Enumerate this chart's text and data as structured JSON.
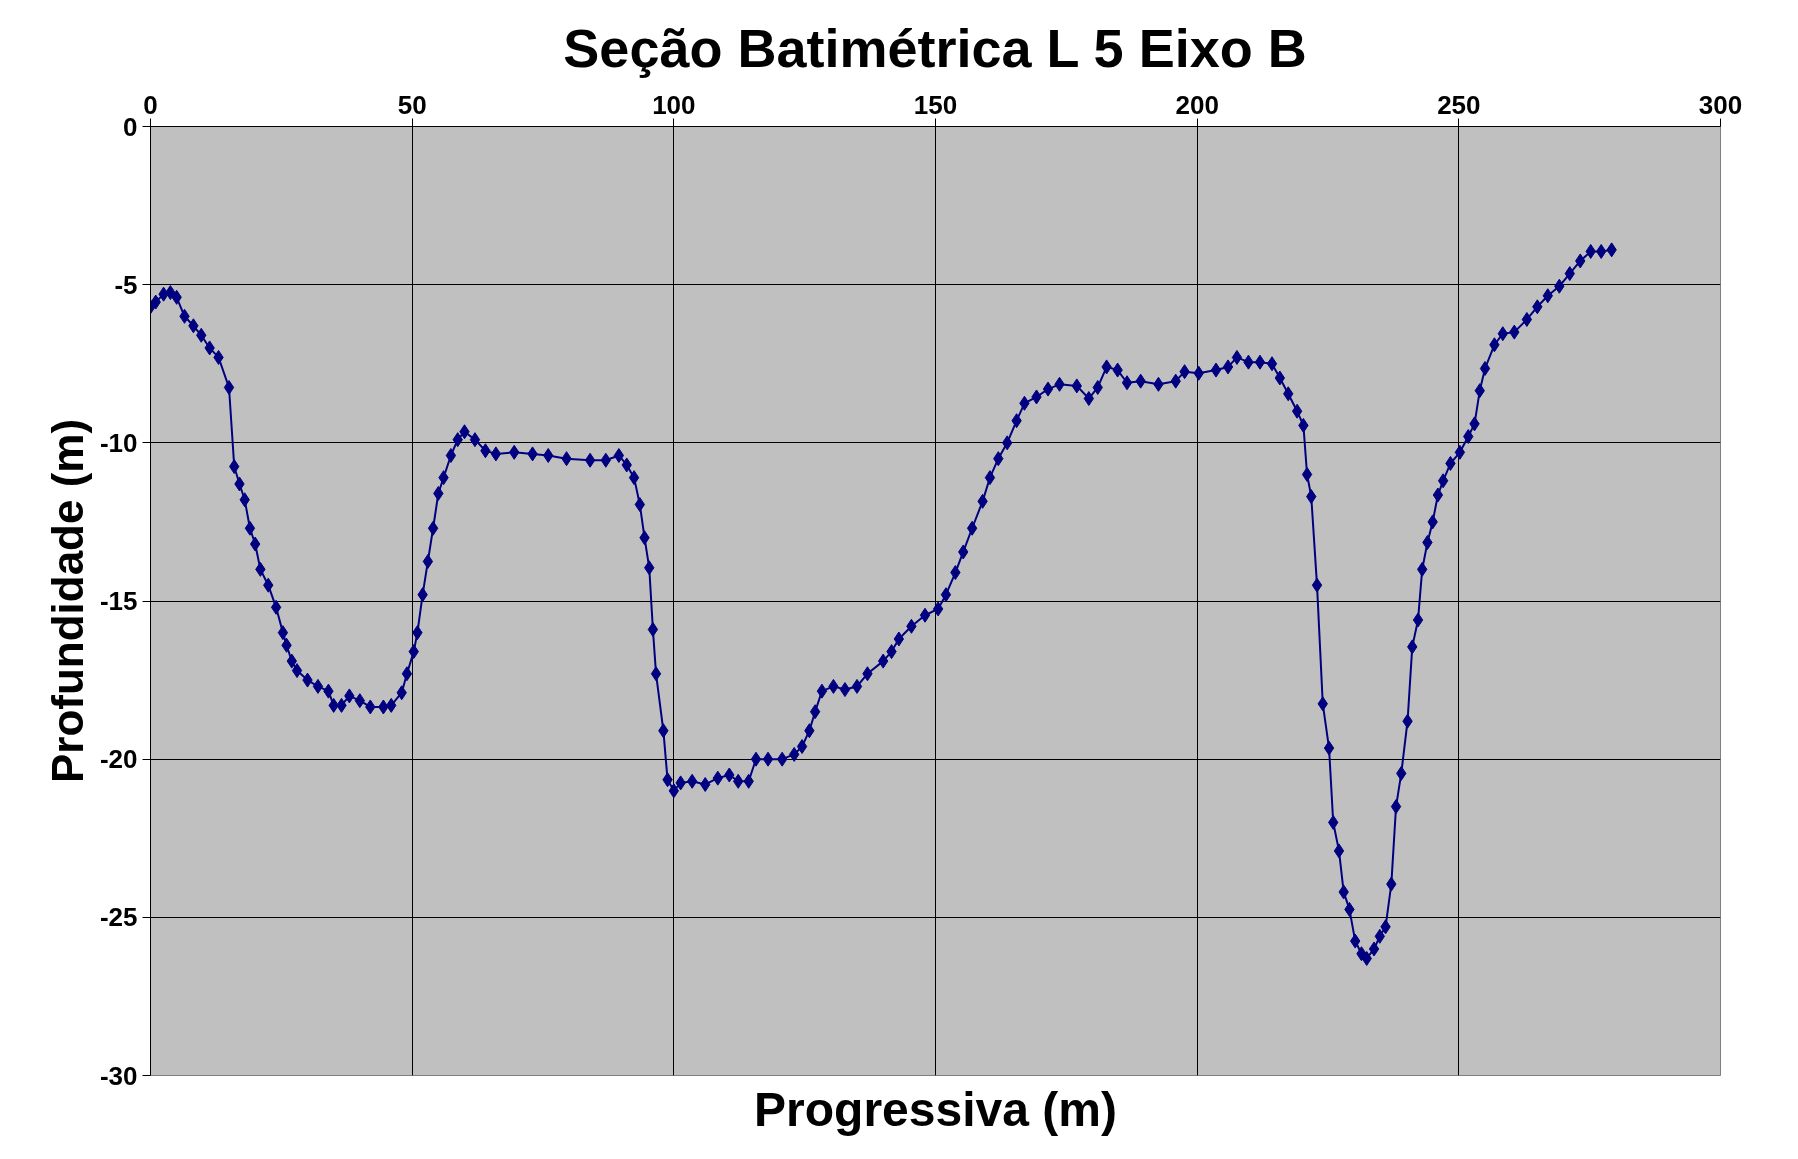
{
  "chart_data": {
    "type": "line",
    "title": "Seção Batimétrica L 5 Eixo B",
    "xlabel": "Progressiva (m)",
    "ylabel": "Profundidade (m)",
    "xlim": [
      0,
      300
    ],
    "xticks": [
      0,
      50,
      100,
      150,
      200,
      250,
      300
    ],
    "ylim": [
      -30,
      0
    ],
    "yticks": [
      -30,
      -25,
      -20,
      -15,
      -10,
      -5,
      0
    ],
    "grid": true,
    "marker": "diamond",
    "line_style": "solid",
    "series": [
      {
        "color": "#000080",
        "x": [
          0,
          1,
          2.5,
          3.8,
          5,
          6.5,
          8.2,
          9.7,
          11.3,
          13,
          15,
          16,
          17,
          18,
          19,
          20,
          21,
          22.5,
          24,
          25.3,
          26,
          27,
          28,
          30,
          32,
          34,
          35,
          36.5,
          38,
          40,
          42,
          44.5,
          46,
          48,
          49,
          50.3,
          51,
          52,
          53,
          54,
          55,
          56,
          57.4,
          58.7,
          60,
          62,
          64,
          66,
          69.5,
          73,
          76,
          79.5,
          84,
          87,
          89.5,
          91,
          92.4,
          93.5,
          94.4,
          95.3,
          96,
          96.6,
          98,
          98.8,
          100,
          101.3,
          103.5,
          106,
          108.4,
          110.6,
          112.3,
          114.3,
          115.7,
          118,
          120.7,
          123,
          124.5,
          125.9,
          127,
          128.3,
          130.5,
          132.7,
          135,
          137,
          140,
          141.6,
          143,
          145.4,
          148,
          150.5,
          152,
          153.8,
          155.3,
          157,
          159,
          160.4,
          162,
          163.7,
          165.5,
          167,
          169.3,
          171.5,
          173.7,
          177,
          179.3,
          181,
          182.7,
          184.8,
          186.6,
          189.2,
          192.6,
          195.9,
          197.6,
          200.3,
          203.6,
          205.9,
          207.6,
          209.8,
          212,
          214.3,
          215.8,
          217.4,
          219.1,
          220.3,
          221,
          221.8,
          222.9,
          224,
          225.2,
          226,
          227.1,
          228,
          229.1,
          230.2,
          231.4,
          232.4,
          233.8,
          234.9,
          236,
          237.1,
          238,
          239,
          240.2,
          241.1,
          242.2,
          243,
          244,
          245,
          246,
          247,
          248.4,
          250.2,
          251.8,
          253,
          254,
          255,
          256.8,
          258.4,
          260.6,
          263,
          265,
          267,
          269.2,
          271.2,
          273.2,
          275.2,
          277.2,
          279.2
        ],
        "values": [
          -5.7,
          -5.55,
          -5.3,
          -5.25,
          -5.4,
          -6.0,
          -6.3,
          -6.6,
          -7.0,
          -7.3,
          -8.25,
          -10.75,
          -11.3,
          -11.8,
          -12.7,
          -13.2,
          -14.0,
          -14.5,
          -15.2,
          -16.0,
          -16.4,
          -16.9,
          -17.2,
          -17.5,
          -17.7,
          -17.85,
          -18.3,
          -18.3,
          -18.0,
          -18.15,
          -18.35,
          -18.35,
          -18.3,
          -17.9,
          -17.3,
          -16.6,
          -16.0,
          -14.8,
          -13.75,
          -12.7,
          -11.6,
          -11.1,
          -10.4,
          -9.9,
          -9.65,
          -9.9,
          -10.25,
          -10.35,
          -10.3,
          -10.35,
          -10.4,
          -10.5,
          -10.55,
          -10.55,
          -10.4,
          -10.7,
          -11.1,
          -11.95,
          -13.0,
          -13.95,
          -15.9,
          -17.3,
          -19.1,
          -20.65,
          -21.0,
          -20.75,
          -20.7,
          -20.8,
          -20.6,
          -20.5,
          -20.7,
          -20.7,
          -20.0,
          -20.0,
          -20.0,
          -19.85,
          -19.6,
          -19.1,
          -18.5,
          -17.85,
          -17.7,
          -17.8,
          -17.7,
          -17.3,
          -16.9,
          -16.6,
          -16.2,
          -15.8,
          -15.45,
          -15.25,
          -14.8,
          -14.1,
          -13.45,
          -12.7,
          -11.85,
          -11.1,
          -10.5,
          -10.0,
          -9.3,
          -8.75,
          -8.55,
          -8.3,
          -8.15,
          -8.2,
          -8.6,
          -8.25,
          -7.6,
          -7.7,
          -8.1,
          -8.05,
          -8.15,
          -8.05,
          -7.75,
          -7.8,
          -7.7,
          -7.6,
          -7.3,
          -7.45,
          -7.45,
          -7.5,
          -7.95,
          -8.45,
          -9.0,
          -9.45,
          -11.0,
          -11.7,
          -14.5,
          -18.25,
          -19.65,
          -22.0,
          -22.9,
          -24.2,
          -24.75,
          -25.75,
          -26.15,
          -26.3,
          -26.0,
          -25.6,
          -25.3,
          -23.95,
          -21.5,
          -20.45,
          -18.8,
          -16.45,
          -15.6,
          -14.0,
          -13.15,
          -12.5,
          -11.65,
          -11.2,
          -10.65,
          -10.3,
          -9.8,
          -9.4,
          -8.35,
          -7.65,
          -6.9,
          -6.55,
          -6.5,
          -6.1,
          -5.7,
          -5.35,
          -5.05,
          -4.65,
          -4.25,
          -3.95,
          -3.95,
          -3.9
        ]
      }
    ]
  }
}
